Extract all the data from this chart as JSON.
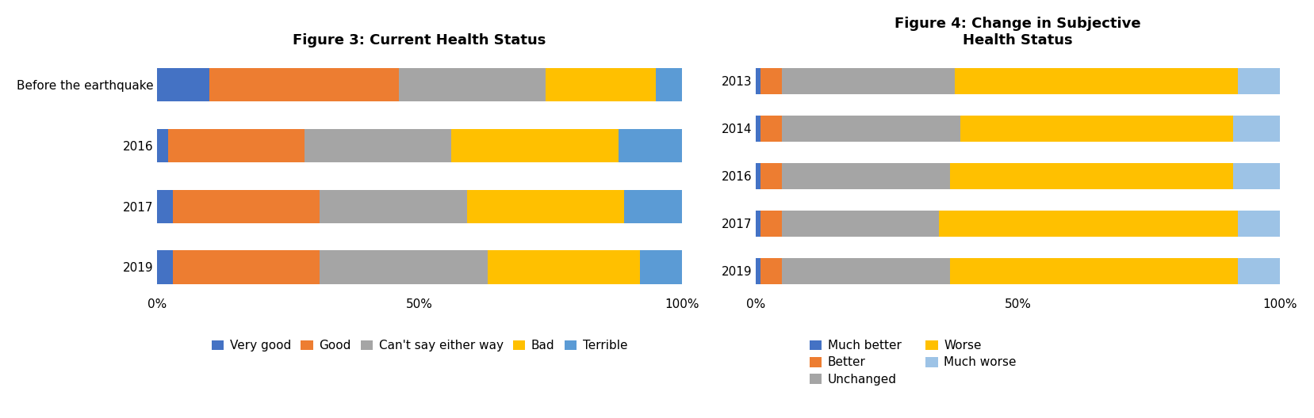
{
  "fig3_title": "Figure 3: Current Health Status",
  "fig4_title": "Figure 4: Change in Subjective\nHealth Status",
  "fig3_categories": [
    "Before the earthquake",
    "2016",
    "2017",
    "2019"
  ],
  "fig3_series": {
    "Very good": [
      10,
      2,
      3,
      3
    ],
    "Good": [
      36,
      26,
      28,
      28
    ],
    "Can't say either way": [
      28,
      28,
      28,
      32
    ],
    "Bad": [
      21,
      32,
      30,
      29
    ],
    "Terrible": [
      5,
      12,
      11,
      8
    ]
  },
  "fig3_colors": {
    "Very good": "#4472c4",
    "Good": "#ed7d31",
    "Can't say either way": "#a5a5a5",
    "Bad": "#ffc000",
    "Terrible": "#5b9bd5"
  },
  "fig4_categories": [
    "2013",
    "2014",
    "2016",
    "2017",
    "2019"
  ],
  "fig4_series": {
    "Much better": [
      1,
      1,
      1,
      1,
      1
    ],
    "Better": [
      4,
      4,
      4,
      4,
      4
    ],
    "Unchanged": [
      33,
      34,
      32,
      30,
      32
    ],
    "Worse": [
      54,
      52,
      54,
      57,
      55
    ],
    "Much worse": [
      8,
      9,
      9,
      8,
      8
    ]
  },
  "fig4_colors": {
    "Much better": "#4472c4",
    "Better": "#ed7d31",
    "Unchanged": "#a5a5a5",
    "Worse": "#ffc000",
    "Much worse": "#9dc3e6"
  },
  "background_color": "#ffffff",
  "title_fontsize": 13,
  "tick_fontsize": 11,
  "legend_fontsize": 11
}
